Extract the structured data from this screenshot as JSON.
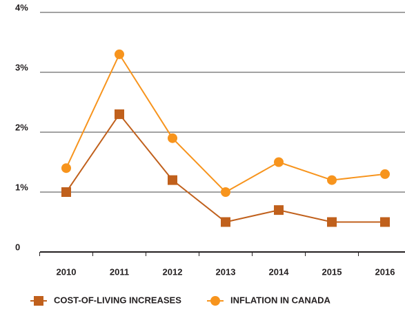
{
  "chart_data": {
    "type": "line",
    "categories": [
      "2010",
      "2011",
      "2012",
      "2013",
      "2014",
      "2015",
      "2016"
    ],
    "series": [
      {
        "name": "COST-OF-LIVING INCREASES",
        "color": "#c0601c",
        "marker": "square",
        "values": [
          1.0,
          2.3,
          1.2,
          0.5,
          0.7,
          0.5,
          0.5
        ]
      },
      {
        "name": "INFLATION IN CANADA",
        "color": "#f7941d",
        "marker": "circle",
        "values": [
          1.4,
          3.3,
          1.9,
          1.0,
          1.5,
          1.2,
          1.3
        ]
      }
    ],
    "ylim": [
      0,
      4
    ],
    "yticks": [
      0,
      {
        "value": 1,
        "label": "1%"
      },
      {
        "value": 2,
        "label": "2%"
      },
      {
        "value": 3,
        "label": "3%"
      },
      {
        "value": 4,
        "label": "4%"
      }
    ],
    "grid": true,
    "legend": "bottom"
  }
}
